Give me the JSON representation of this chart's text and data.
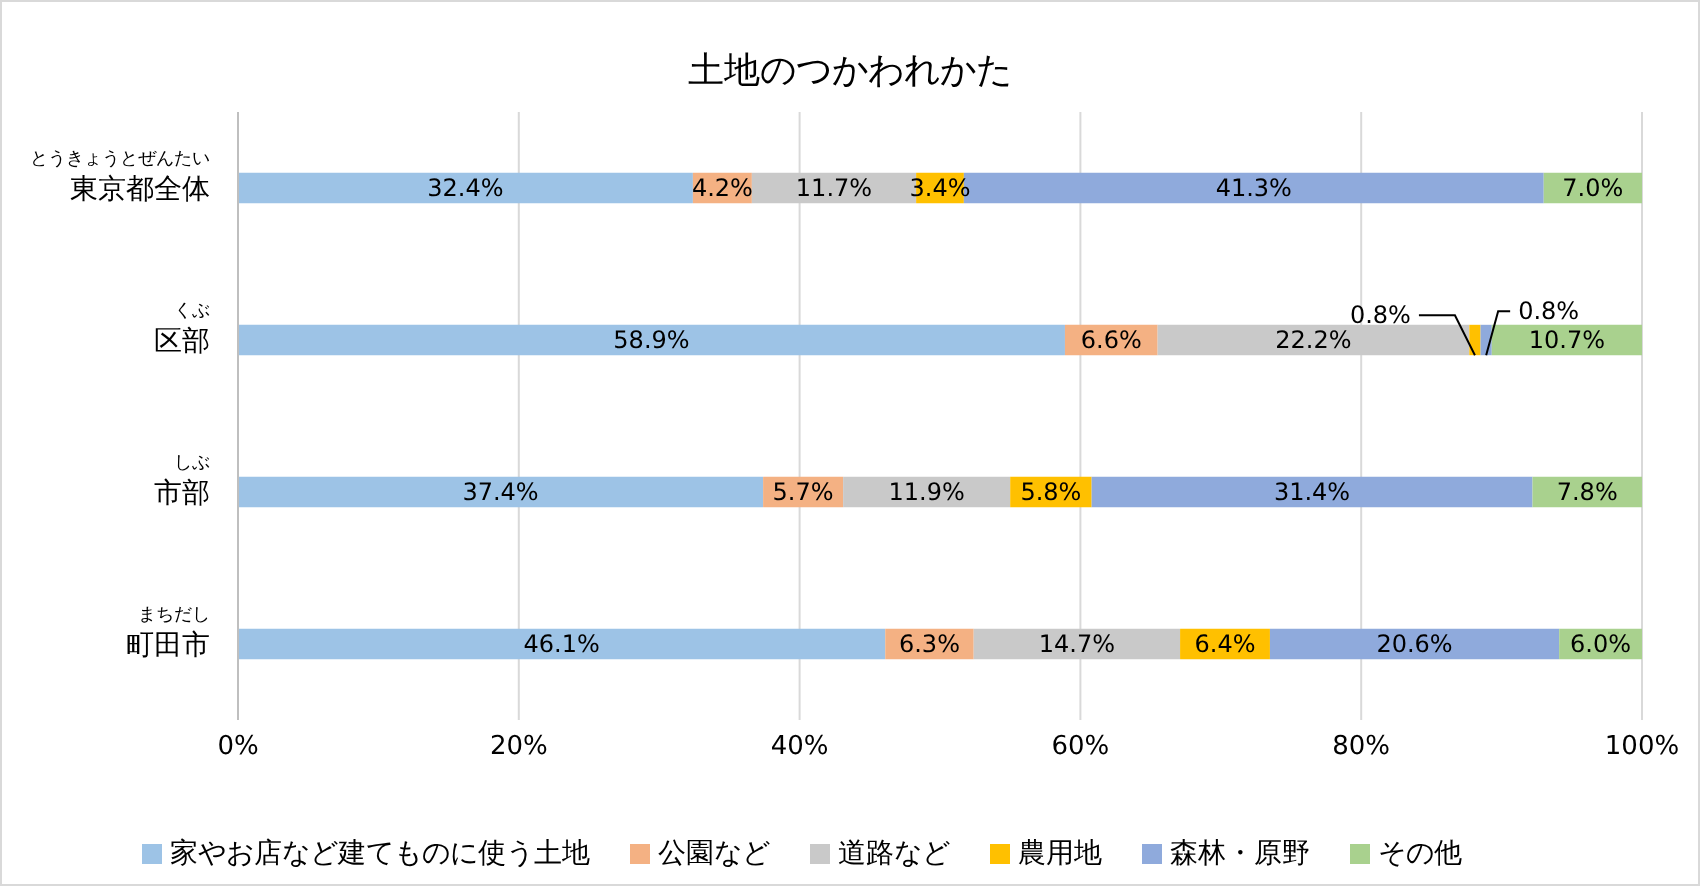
{
  "chart_data": {
    "type": "bar",
    "orientation": "horizontal",
    "stacked": true,
    "title": "土地のつかわれかた",
    "categories": [
      "とうきょうとぜんたい東京都全体",
      "くぶ区部",
      "しぶ市部",
      "まちだし町田市"
    ],
    "series": [
      {
        "name": "家やお店など建てものに使う土地",
        "color": "#9dc3e6",
        "values": [
          32.4,
          58.9,
          37.4,
          46.1
        ],
        "value_labels": [
          "32.4%",
          "58.9%",
          "37.4%",
          "46.1%"
        ]
      },
      {
        "name": "公園など",
        "color": "#f4b183",
        "values": [
          4.2,
          6.6,
          5.7,
          6.3
        ],
        "value_labels": [
          "4.2%",
          "6.6%",
          "5.7%",
          "6.3%"
        ]
      },
      {
        "name": "道路など",
        "color": "#c9c9c9",
        "values": [
          11.7,
          22.2,
          11.9,
          14.7
        ],
        "value_labels": [
          "11.7%",
          "22.2%",
          "11.9%",
          "14.7%"
        ]
      },
      {
        "name": "農用地",
        "color": "#ffc000",
        "values": [
          3.4,
          0.8,
          5.8,
          6.4
        ],
        "value_labels": [
          "3.4%",
          "0.8%",
          "5.8%",
          "6.4%"
        ]
      },
      {
        "name": "森林・原野",
        "color": "#8faadc",
        "values": [
          41.3,
          0.8,
          31.4,
          20.6
        ],
        "value_labels": [
          "41.3%",
          "0.8%",
          "31.4%",
          "20.6%"
        ]
      },
      {
        "name": "その他",
        "color": "#a9d18e",
        "values": [
          7.0,
          10.7,
          7.8,
          6.0
        ],
        "value_labels": [
          "7.0%",
          "10.7%",
          "7.8%",
          "6.0%"
        ]
      }
    ],
    "xlim": [
      0,
      100
    ],
    "xticks": [
      {
        "value": 0,
        "label": "0%"
      },
      {
        "value": 20,
        "label": "20%"
      },
      {
        "value": 40,
        "label": "40%"
      },
      {
        "value": 60,
        "label": "60%"
      },
      {
        "value": 80,
        "label": "80%"
      },
      {
        "value": 100,
        "label": "100%"
      }
    ],
    "grid": "x",
    "legend": "bottom"
  }
}
